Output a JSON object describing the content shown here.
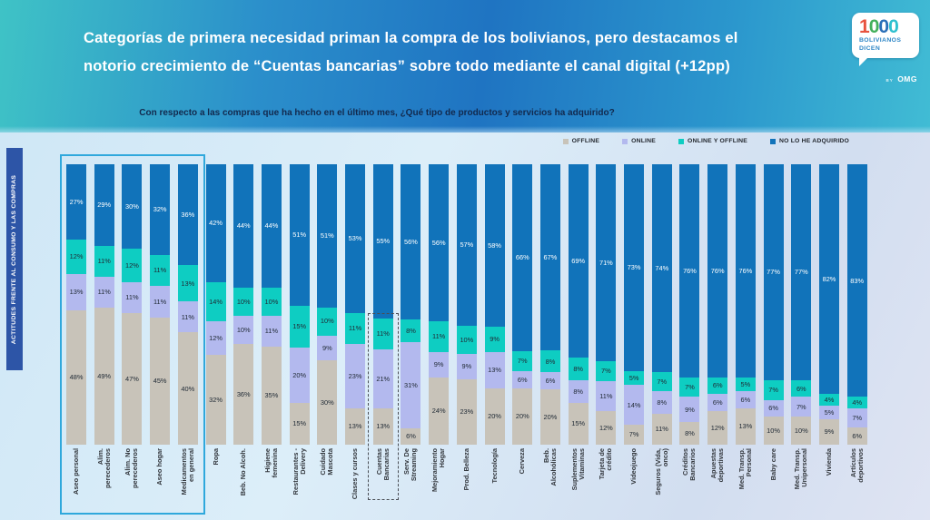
{
  "header": {
    "title_line1": "Categorías de primera necesidad priman la compra de los bolivianos, pero destacamos el",
    "title_line2": "notorio crecimiento de “Cuentas bancarias” sobre todo mediante el canal digital (+12pp)",
    "subtitle": "Con respecto a las compras que ha hecho en el último mes, ¿Qué tipo de productos y servicios ha adquirido?",
    "logo": {
      "number": "1000",
      "digit_colors": [
        "#e8533f",
        "#43b05c",
        "#2a6fb8",
        "#2fc0cf"
      ],
      "line1": "BOLIVIANOS",
      "line2": "DICEN",
      "byline": "BY",
      "brand": "OMG"
    }
  },
  "sidebar": {
    "label": "ACTITUDES FRENTE AL CONSUMO Y LAS COMPRAS"
  },
  "colors": {
    "offline": "#c8c3b9",
    "online": "#b3b9ee",
    "online_offline": "#0ecdc2",
    "no_adquirido": "#1173ba",
    "highlight_box": "#2fa8dc",
    "sidebar_tab": "#2d55a7"
  },
  "chart_data": {
    "type": "bar",
    "stacked": true,
    "percent_stacked": true,
    "value_suffix": "%",
    "ylim": [
      0,
      100
    ],
    "legend_position": "top-right",
    "categories": [
      "Aseo personal",
      "Alim.\nperecederos",
      "Alim. No\nperecederos",
      "Aseo hogar",
      "Medicamentos\nen general",
      "Ropa",
      "Beb. No Alcoh.",
      "Higiene\nfemenina",
      "Restaurantes -\nDelivery",
      "Cuidado\nMascota",
      "Clases y cursos",
      "Cuentas\nBancarias",
      "Serv. De\nStreaming",
      "Mejoramiento\nHogar",
      "Prod. Belleza",
      "Tecnología",
      "Cerveza",
      "Beb.\nAlcohólicas",
      "Suplementos\nVitaminas",
      "Tarjeta de\ncrédito",
      "Videojuego",
      "Seguros (Vida,\nonco)",
      "Créditos\nBancarios",
      "Apuestas\ndeportivas",
      "Med. Transp.\nPersonal",
      "Baby care",
      "Med. Transp.\nUnipersonal",
      "Vivienda",
      "Artículos\ndeportivos"
    ],
    "series": [
      {
        "name": "OFFLINE",
        "color": "#c8c3b9",
        "values": [
          48,
          49,
          47,
          45,
          40,
          32,
          36,
          35,
          15,
          30,
          13,
          13,
          6,
          24,
          23,
          20,
          20,
          20,
          15,
          12,
          7,
          11,
          8,
          12,
          13,
          10,
          10,
          9,
          6
        ]
      },
      {
        "name": "ONLINE",
        "color": "#b3b9ee",
        "values": [
          13,
          11,
          11,
          11,
          11,
          12,
          10,
          11,
          20,
          9,
          23,
          21,
          31,
          9,
          9,
          13,
          6,
          6,
          8,
          11,
          14,
          8,
          9,
          6,
          6,
          6,
          7,
          5,
          7
        ]
      },
      {
        "name": "ONLINE Y OFFLINE",
        "color": "#0ecdc2",
        "values": [
          12,
          11,
          12,
          11,
          13,
          14,
          10,
          10,
          15,
          10,
          11,
          11,
          8,
          11,
          10,
          9,
          7,
          8,
          8,
          7,
          5,
          7,
          7,
          6,
          5,
          7,
          6,
          4,
          4
        ]
      },
      {
        "name": "NO LO HE ADQUIRIDO",
        "color": "#1173ba",
        "values": [
          27,
          29,
          30,
          32,
          36,
          42,
          44,
          44,
          51,
          51,
          53,
          55,
          56,
          56,
          57,
          58,
          66,
          67,
          69,
          71,
          73,
          74,
          76,
          76,
          76,
          77,
          77,
          82,
          83
        ]
      }
    ],
    "annotations": {
      "highlight_group_first_n": 5,
      "dashed_category": "Cuentas Bancarias"
    }
  }
}
